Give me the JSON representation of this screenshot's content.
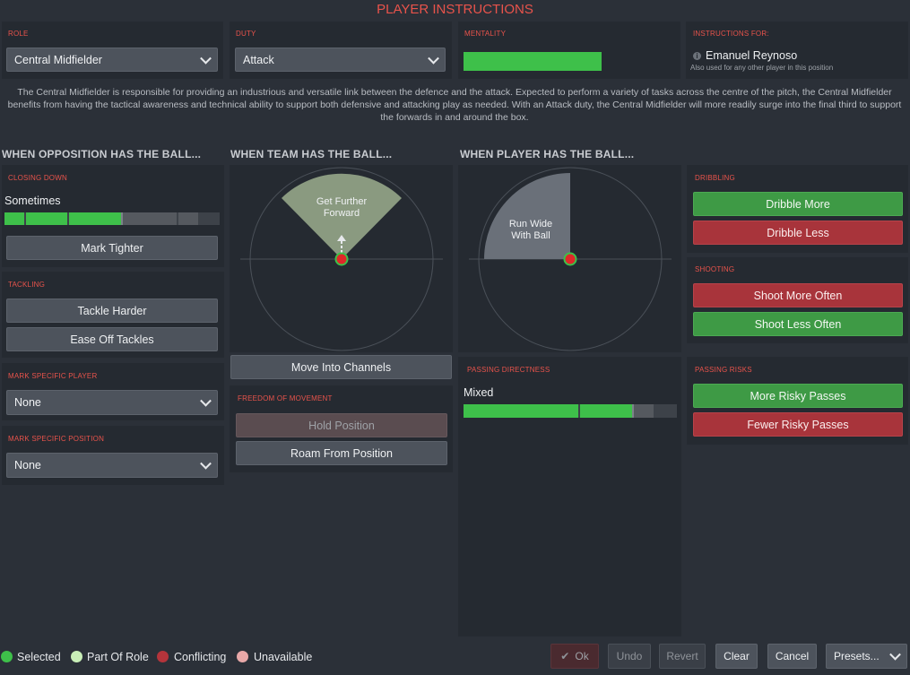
{
  "header": {
    "title": "PLAYER INSTRUCTIONS"
  },
  "role": {
    "label": "ROLE",
    "value": "Central Midfielder"
  },
  "duty": {
    "label": "DUTY",
    "value": "Attack"
  },
  "mentality": {
    "label": "MENTALITY",
    "level": 1.0
  },
  "instructions_for": {
    "label": "INSTRUCTIONS FOR:",
    "player": "Emanuel Reynoso",
    "note": "Also used for any other player in this position"
  },
  "description": "The Central Midfielder is responsible for providing an industrious and versatile link between the defence and the attack. Expected to perform a variety of tasks across the centre of the pitch, the Central Midfielder benefits from having the tactical awareness and technical ability to support both defensive and attacking play as needed. With an Attack duty, the Central Midfielder will more readily surge into the final third to support the forwards in and around the box.",
  "sections": {
    "opposition": "WHEN OPPOSITION HAS THE BALL...",
    "team": "WHEN TEAM HAS THE BALL...",
    "player": "WHEN PLAYER HAS THE BALL..."
  },
  "closing_down": {
    "label": "CLOSING DOWN",
    "value": "Sometimes",
    "mark_tighter": "Mark Tighter"
  },
  "tackling": {
    "label": "TACKLING",
    "tackle_harder": "Tackle Harder",
    "ease_off": "Ease Off Tackles"
  },
  "mark_player": {
    "label": "MARK SPECIFIC PLAYER",
    "value": "None"
  },
  "mark_position": {
    "label": "MARK SPECIFIC POSITION",
    "value": "None"
  },
  "team_pitch": {
    "zone_label_1": "Get Further",
    "zone_label_2": "Forward"
  },
  "move_channels": "Move Into Channels",
  "freedom": {
    "label": "FREEDOM OF MOVEMENT",
    "hold": "Hold Position",
    "roam": "Roam From Position"
  },
  "player_pitch": {
    "zone_label_1": "Run Wide",
    "zone_label_2": "With Ball"
  },
  "passing_directness": {
    "label": "PASSING DIRECTNESS",
    "value": "Mixed"
  },
  "dribbling": {
    "label": "DRIBBLING",
    "more": "Dribble More",
    "less": "Dribble Less"
  },
  "shooting": {
    "label": "SHOOTING",
    "more": "Shoot More Often",
    "less": "Shoot Less Often"
  },
  "passing_risks": {
    "label": "PASSING RISKS",
    "more": "More Risky Passes",
    "fewer": "Fewer Risky Passes"
  },
  "legend": {
    "selected": "Selected",
    "part_of_role": "Part Of Role",
    "conflicting": "Conflicting",
    "unavailable": "Unavailable"
  },
  "footer": {
    "ok": "Ok",
    "undo": "Undo",
    "revert": "Revert",
    "clear": "Clear",
    "cancel": "Cancel",
    "presets": "Presets..."
  },
  "colors": {
    "accent_red": "#e8534b",
    "selected_green": "#3ec04a",
    "part_of_role": "#c9efb8",
    "conflicting": "#b4343b",
    "unavailable": "#e8a8a8"
  }
}
